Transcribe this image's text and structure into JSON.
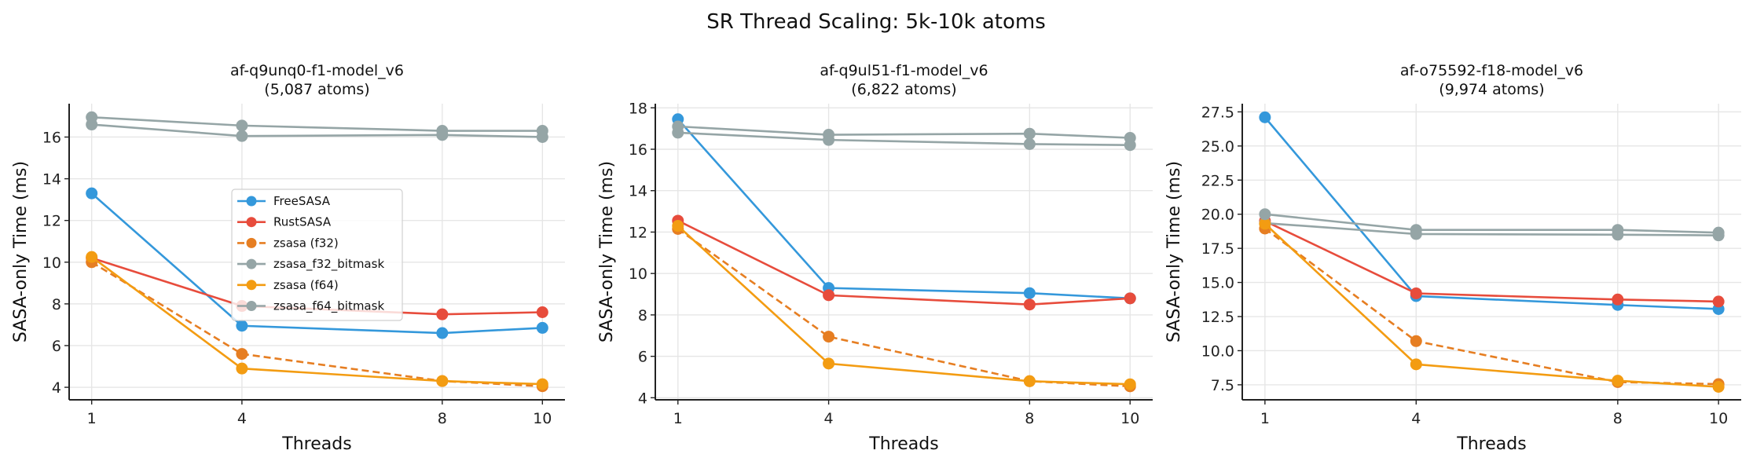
{
  "chart_data": {
    "suptitle": "SR Thread Scaling: 5k-10k atoms",
    "series_styles": [
      {
        "name": "FreeSASA",
        "color": "#3498db",
        "dashed": false
      },
      {
        "name": "RustSASA",
        "color": "#e74c3c",
        "dashed": false
      },
      {
        "name": "zsasa (f32)",
        "color": "#e67e22",
        "dashed": true
      },
      {
        "name": "zsasa_f32_bitmask",
        "color": "#95a5a6",
        "dashed": false
      },
      {
        "name": "zsasa (f64)",
        "color": "#f39c12",
        "dashed": false
      },
      {
        "name": "zsasa_f64_bitmask",
        "color": "#95a5a6",
        "dashed": false
      }
    ],
    "legend_position": "center (first panel only)",
    "grid": true,
    "charts": [
      {
        "type": "line",
        "title_line1": "af-q9unq0-f1-model_v6",
        "title_line2": "(5,087 atoms)",
        "xlabel": "Threads",
        "ylabel": "SASA-only Time (ms)",
        "x": [
          1,
          4,
          8,
          10
        ],
        "xticks": [
          "1",
          "4",
          "8",
          "10"
        ],
        "yticks": [
          "4",
          "6",
          "8",
          "10",
          "12",
          "14",
          "16"
        ],
        "ytick_values": [
          4,
          6,
          8,
          10,
          12,
          14,
          16
        ],
        "ylim": [
          3.4,
          17.6
        ],
        "series": [
          {
            "name": "FreeSASA",
            "values": [
              13.3,
              6.95,
              6.6,
              6.85
            ]
          },
          {
            "name": "RustSASA",
            "values": [
              10.2,
              7.9,
              7.5,
              7.6
            ]
          },
          {
            "name": "zsasa (f32)",
            "values": [
              10.0,
              5.6,
              4.3,
              4.05
            ]
          },
          {
            "name": "zsasa_f32_bitmask",
            "values": [
              16.6,
              16.05,
              16.1,
              16.0
            ]
          },
          {
            "name": "zsasa (f64)",
            "values": [
              10.25,
              4.9,
              4.3,
              4.15
            ]
          },
          {
            "name": "zsasa_f64_bitmask",
            "values": [
              16.95,
              16.55,
              16.3,
              16.3
            ]
          }
        ]
      },
      {
        "type": "line",
        "title_line1": "af-q9ul51-f1-model_v6",
        "title_line2": "(6,822 atoms)",
        "xlabel": "Threads",
        "ylabel": "SASA-only Time (ms)",
        "x": [
          1,
          4,
          8,
          10
        ],
        "xticks": [
          "1",
          "4",
          "8",
          "10"
        ],
        "yticks": [
          "4",
          "6",
          "8",
          "10",
          "12",
          "14",
          "16",
          "18"
        ],
        "ytick_values": [
          4,
          6,
          8,
          10,
          12,
          14,
          16,
          18
        ],
        "ylim": [
          3.9,
          18.2
        ],
        "series": [
          {
            "name": "FreeSASA",
            "values": [
              17.45,
              9.3,
              9.05,
              8.8
            ]
          },
          {
            "name": "RustSASA",
            "values": [
              12.55,
              8.95,
              8.5,
              8.8
            ]
          },
          {
            "name": "zsasa (f32)",
            "values": [
              12.15,
              6.95,
              4.8,
              4.55
            ]
          },
          {
            "name": "zsasa_f32_bitmask",
            "values": [
              16.8,
              16.45,
              16.25,
              16.2
            ]
          },
          {
            "name": "zsasa (f64)",
            "values": [
              12.3,
              5.65,
              4.8,
              4.65
            ]
          },
          {
            "name": "zsasa_f64_bitmask",
            "values": [
              17.1,
              16.7,
              16.75,
              16.55
            ]
          }
        ]
      },
      {
        "type": "line",
        "title_line1": "af-o75592-f18-model_v6",
        "title_line2": "(9,974 atoms)",
        "xlabel": "Threads",
        "ylabel": "SASA-only Time (ms)",
        "x": [
          1,
          4,
          8,
          10
        ],
        "xticks": [
          "1",
          "4",
          "8",
          "10"
        ],
        "yticks": [
          "7.5",
          "10.0",
          "12.5",
          "15.0",
          "17.5",
          "20.0",
          "22.5",
          "25.0",
          "27.5"
        ],
        "ytick_values": [
          7.5,
          10,
          12.5,
          15,
          17.5,
          20,
          22.5,
          25,
          27.5
        ],
        "ylim": [
          6.4,
          28.1
        ],
        "series": [
          {
            "name": "FreeSASA",
            "values": [
              27.1,
              14.0,
              13.35,
              13.05
            ]
          },
          {
            "name": "RustSASA",
            "values": [
              19.5,
              14.2,
              13.75,
              13.6
            ]
          },
          {
            "name": "zsasa (f32)",
            "values": [
              18.95,
              10.7,
              7.7,
              7.55
            ]
          },
          {
            "name": "zsasa_f32_bitmask",
            "values": [
              19.35,
              18.55,
              18.5,
              18.45
            ]
          },
          {
            "name": "zsasa (f64)",
            "values": [
              19.3,
              9.0,
              7.8,
              7.35
            ]
          },
          {
            "name": "zsasa_f64_bitmask",
            "values": [
              20.0,
              18.85,
              18.85,
              18.65
            ]
          }
        ]
      }
    ]
  }
}
